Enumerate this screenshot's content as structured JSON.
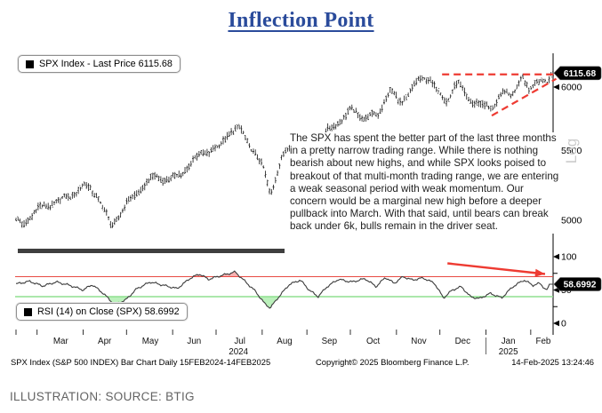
{
  "title": "Inflection Point",
  "annotation": "The SPX has spent the better part of the last three months in a pretty narrow trading range. While there is nothing bearish about new highs, and while SPX looks poised to breakout of that multi-month trading range, we are entering a weak seasonal period with weak momentum. Our concern would be a marginal new high before a deeper pullback into March. With that said, until bears can break back under 6k, bulls remain in the driver seat.",
  "footer": {
    "left": "SPX Index (S&P 500 INDEX) Bar Chart Daily 15FEB2024-14FEB2025",
    "center": "Copyright© 2025 Bloomberg Finance L.P.",
    "right": "14-Feb-2025 13:24:46"
  },
  "caption": "ILLUSTRATION: SOURCE: BTIG",
  "colors": {
    "title_blue": "#2a4b9b",
    "annotation_red": "#ee3b32",
    "overbought_red": "#e84b44",
    "oversold_green": "#8fe08f",
    "bar_black": "#161616",
    "badge_bg": "#000000",
    "badge_text": "#ffffff",
    "log_label_gray": "#cccccc"
  },
  "chart_data": [
    {
      "type": "candlestick",
      "name": "SPX Index",
      "legend": "SPX Index - Last Price 6115.68",
      "last": 6115.68,
      "last_label": "6115.68",
      "scale": "log",
      "scale_label": "Log",
      "date_range": "15FEB2024-14FEB2025",
      "ylim": [
        4850,
        6200
      ],
      "y_ticks": [
        6000,
        5500,
        5000
      ],
      "x_months": [
        "Mar",
        "Apr",
        "May",
        "Jun",
        "Jul",
        "Aug",
        "Sep",
        "Oct",
        "Nov",
        "Dec",
        "Jan",
        "Feb"
      ],
      "month_label_ts": [
        1.0,
        1.98,
        3.0,
        3.98,
        5.0,
        6.0,
        7.0,
        7.98,
        9.0,
        9.98,
        11.0,
        11.78
      ],
      "month_tick_ts": [
        0,
        0.47,
        1.5,
        2.47,
        3.5,
        4.47,
        5.5,
        6.5,
        7.47,
        8.5,
        9.47,
        10.5,
        11.5
      ],
      "year_labels": [
        {
          "text": "2024",
          "t": 4.97
        },
        {
          "text": "2025",
          "t": 11.0
        }
      ],
      "anchors": [
        [
          0,
          5005
        ],
        [
          0.15,
          4970
        ],
        [
          0.5,
          5080
        ],
        [
          0.9,
          5120
        ],
        [
          1.2,
          5170
        ],
        [
          1.55,
          5245
        ],
        [
          1.8,
          5180
        ],
        [
          2.13,
          4955
        ],
        [
          2.45,
          5105
        ],
        [
          2.8,
          5225
        ],
        [
          3.1,
          5310
        ],
        [
          3.45,
          5280
        ],
        [
          3.8,
          5360
        ],
        [
          4.15,
          5490
        ],
        [
          4.5,
          5510
        ],
        [
          4.77,
          5640
        ],
        [
          5.0,
          5666
        ],
        [
          5.3,
          5505
        ],
        [
          5.55,
          5346
        ],
        [
          5.68,
          5186
        ],
        [
          5.95,
          5455
        ],
        [
          6.3,
          5625
        ],
        [
          6.6,
          5408
        ],
        [
          6.9,
          5630
        ],
        [
          7.15,
          5702
        ],
        [
          7.5,
          5815
        ],
        [
          7.8,
          5750
        ],
        [
          8.1,
          5782
        ],
        [
          8.35,
          5973
        ],
        [
          8.6,
          5870
        ],
        [
          8.95,
          6032
        ],
        [
          9.2,
          6090
        ],
        [
          9.6,
          5872
        ],
        [
          9.85,
          6037
        ],
        [
          10.1,
          5905
        ],
        [
          10.35,
          5860
        ],
        [
          10.6,
          5827
        ],
        [
          10.9,
          5955
        ],
        [
          11.05,
          5920
        ],
        [
          11.3,
          6100
        ],
        [
          11.45,
          5962
        ],
        [
          11.6,
          6038
        ],
        [
          11.75,
          6072
        ],
        [
          11.88,
          6024
        ],
        [
          12,
          6115.68
        ]
      ],
      "trendlines": [
        {
          "name": "resistance-dashed",
          "points": [
            [
              9.52,
              6105
            ],
            [
              12.07,
              6105
            ]
          ]
        },
        {
          "name": "support-dashed",
          "points": [
            [
              10.63,
              5770
            ],
            [
              12.07,
              6068
            ]
          ]
        }
      ]
    },
    {
      "type": "line",
      "name": "RSI (14) on Close (SPX)",
      "legend": "RSI (14) on Close (SPX) 58.6992",
      "last": 58.6992,
      "last_label": "58.6992",
      "ylim": [
        0,
        100
      ],
      "y_ticks": [
        100,
        50,
        0
      ],
      "minor_ticks": [
        75,
        25
      ],
      "overbought": 70,
      "oversold": 40,
      "anchors": [
        [
          0,
          59
        ],
        [
          0.3,
          63
        ],
        [
          0.6,
          56
        ],
        [
          0.9,
          62
        ],
        [
          1.2,
          57
        ],
        [
          1.5,
          50
        ],
        [
          1.7,
          58
        ],
        [
          1.95,
          45
        ],
        [
          2.2,
          28
        ],
        [
          2.45,
          35
        ],
        [
          2.7,
          52
        ],
        [
          3.0,
          62
        ],
        [
          3.3,
          57
        ],
        [
          3.6,
          52
        ],
        [
          3.9,
          68
        ],
        [
          4.1,
          74
        ],
        [
          4.3,
          66
        ],
        [
          4.6,
          72
        ],
        [
          4.9,
          77
        ],
        [
          5.1,
          64
        ],
        [
          5.35,
          48
        ],
        [
          5.55,
          30
        ],
        [
          5.68,
          23
        ],
        [
          5.85,
          38
        ],
        [
          6.1,
          58
        ],
        [
          6.35,
          65
        ],
        [
          6.55,
          50
        ],
        [
          6.75,
          40
        ],
        [
          6.95,
          55
        ],
        [
          7.2,
          66
        ],
        [
          7.5,
          62
        ],
        [
          7.8,
          67
        ],
        [
          8.05,
          55
        ],
        [
          8.25,
          69
        ],
        [
          8.45,
          60
        ],
        [
          8.65,
          70
        ],
        [
          8.85,
          65
        ],
        [
          9.1,
          68
        ],
        [
          9.35,
          60
        ],
        [
          9.55,
          38
        ],
        [
          9.75,
          50
        ],
        [
          9.95,
          55
        ],
        [
          10.15,
          40
        ],
        [
          10.35,
          37
        ],
        [
          10.6,
          45
        ],
        [
          10.85,
          38
        ],
        [
          11.1,
          55
        ],
        [
          11.35,
          65
        ],
        [
          11.55,
          57
        ],
        [
          11.7,
          60
        ],
        [
          11.85,
          50
        ],
        [
          12,
          58.6992
        ]
      ],
      "arrow": {
        "from": [
          9.64,
          90
        ],
        "to": [
          11.82,
          74
        ]
      }
    }
  ]
}
